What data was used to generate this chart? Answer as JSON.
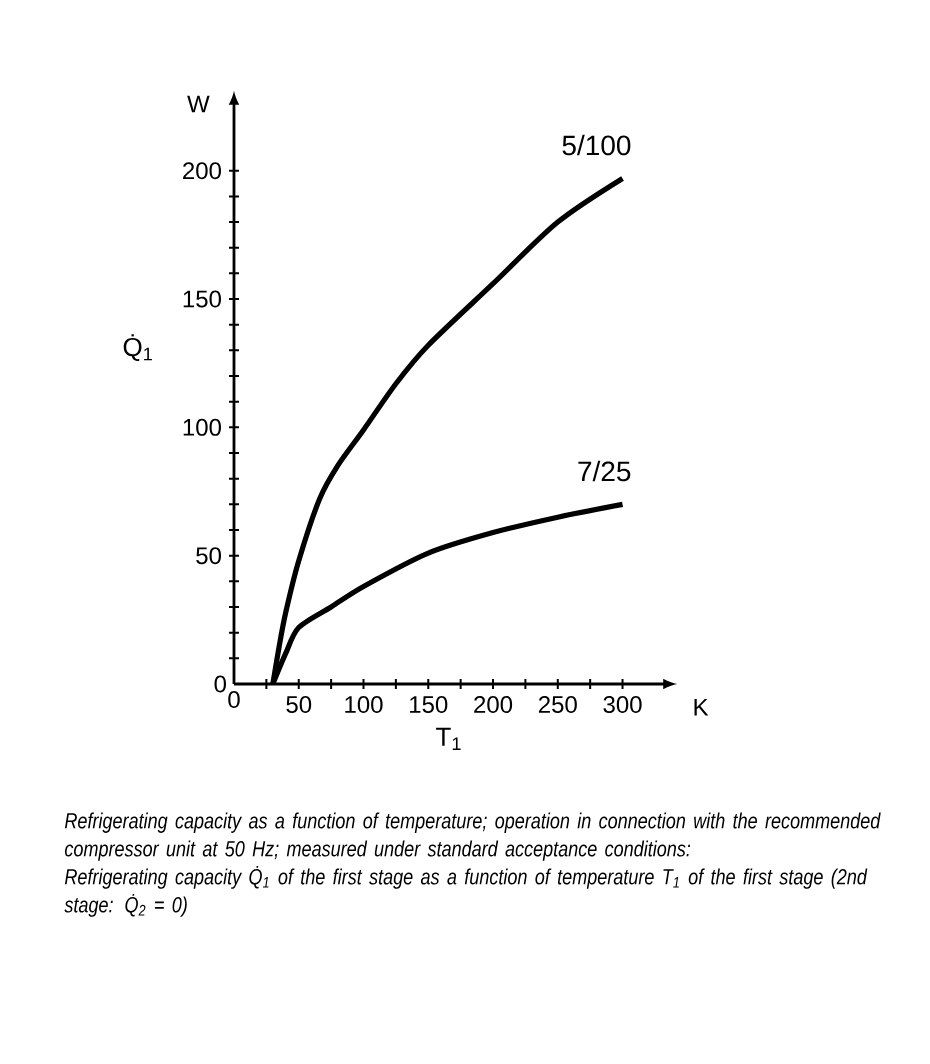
{
  "chart_data": {
    "type": "line",
    "xlabel": "T$_{1}$",
    "ylabel": "Q̇$_{1}$",
    "xlim": [
      0,
      332
    ],
    "ylim": [
      0,
      226
    ],
    "xticks": [
      0,
      {
        "value": 25,
        "label": null
      },
      50,
      {
        "value": 75,
        "label": null
      },
      100,
      {
        "value": 125,
        "label": null
      },
      150,
      {
        "value": 175,
        "label": null
      },
      200,
      {
        "value": 225,
        "label": null
      },
      250,
      {
        "value": 275,
        "label": null
      },
      300
    ],
    "yticks": [
      0,
      {
        "value": 10,
        "label": null
      },
      {
        "value": 20,
        "label": null
      },
      {
        "value": 30,
        "label": null
      },
      {
        "value": 40,
        "label": null
      },
      50,
      {
        "value": 60,
        "label": null
      },
      {
        "value": 70,
        "label": null
      },
      {
        "value": 80,
        "label": null
      },
      {
        "value": 90,
        "label": null
      },
      100,
      {
        "value": 110,
        "label": null
      },
      {
        "value": 120,
        "label": null
      },
      {
        "value": 130,
        "label": null
      },
      {
        "value": 140,
        "label": null
      },
      150,
      {
        "value": 160,
        "label": null
      },
      {
        "value": 170,
        "label": null
      },
      {
        "value": 180,
        "label": null
      },
      {
        "value": 190,
        "label": null
      },
      200
    ],
    "grid": false,
    "legend": false,
    "marker": "none",
    "line_style": "solid",
    "series": [
      {
        "name": "5/100",
        "color": "#000000",
        "x": [
          30,
          35,
          40,
          50,
          66,
          80,
          100,
          125,
          150,
          200,
          250,
          300
        ],
        "values": [
          0,
          15,
          28,
          48,
          72,
          85,
          99,
          117,
          132,
          156,
          180,
          197
        ]
      },
      {
        "name": "7/25",
        "color": "#000000",
        "x": [
          30,
          40,
          50,
          75,
          100,
          150,
          200,
          250,
          300
        ],
        "values": [
          0,
          12,
          22,
          30,
          38,
          51,
          59,
          65,
          70
        ]
      }
    ],
    "annotations": [
      "W",
      "K",
      "Refrigerating capacity as a function of temperature; operation in connection with the recommended compressor unit at 50 Hz; measured under standard acceptance conditions:",
      "Refrigerating capacity Q̇$_{1}$ of the first stage as a function of temperature T$_{1}$ of the first stage (2nd stage: Q̇$_{2}$ = 0)"
    ]
  }
}
